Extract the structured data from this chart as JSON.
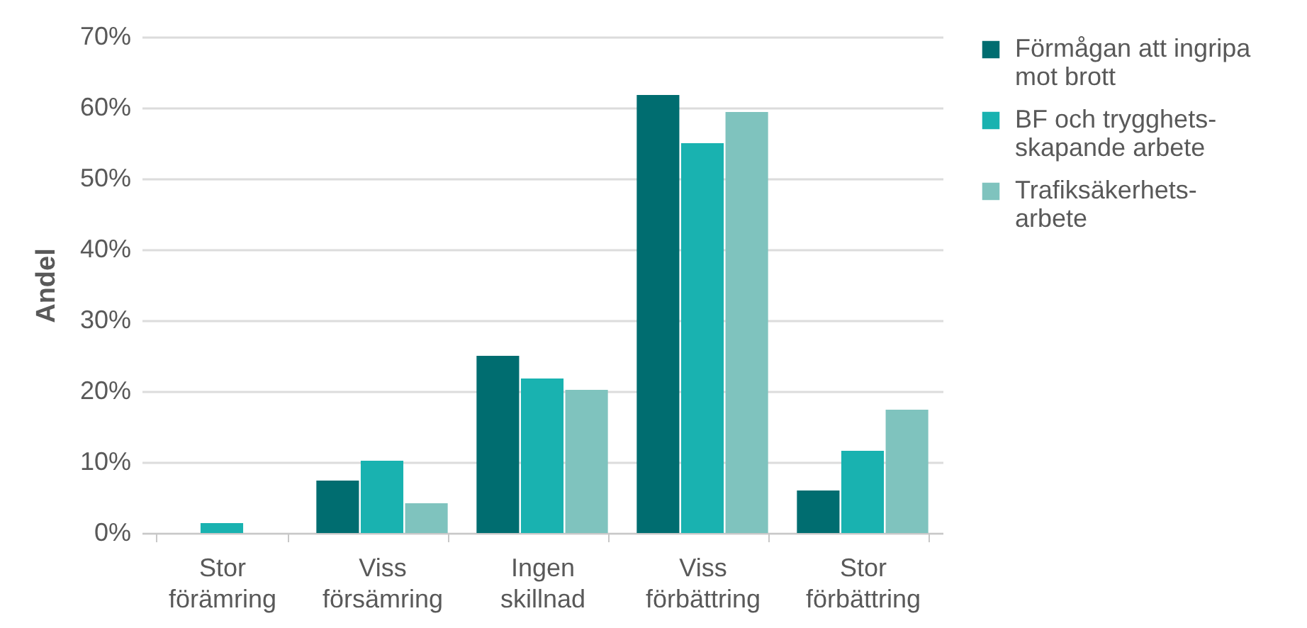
{
  "chart_data": {
    "type": "bar",
    "ylabel": "Andel",
    "categories": [
      "Stor förämring",
      "Viss försämring",
      "Ingen skillnad",
      "Viss förbättring",
      "Stor förbättring"
    ],
    "series": [
      {
        "name": "Förmågan att ingripa mot brott",
        "color": "#006d70",
        "values": [
          0,
          7.4,
          25,
          61.8,
          6
        ]
      },
      {
        "name": "BF och trygghets-skapande arbete",
        "color": "#19b2b0",
        "values": [
          1.4,
          10.2,
          21.8,
          55,
          11.6
        ]
      },
      {
        "name": "Trafiksäkerhets-arbete",
        "color": "#7fc3be",
        "values": [
          0,
          4.2,
          20.2,
          59.4,
          17.4
        ]
      }
    ],
    "ylim": [
      0,
      70
    ],
    "yticks": [
      {
        "value": 0,
        "label": "0%"
      },
      {
        "value": 10,
        "label": "10%"
      },
      {
        "value": 20,
        "label": "20%"
      },
      {
        "value": 30,
        "label": "30%"
      },
      {
        "value": 40,
        "label": "40%"
      },
      {
        "value": 50,
        "label": "50%"
      },
      {
        "value": 60,
        "label": "60%"
      },
      {
        "value": 70,
        "label": "70%"
      }
    ],
    "grid": "y",
    "legend": "right"
  }
}
